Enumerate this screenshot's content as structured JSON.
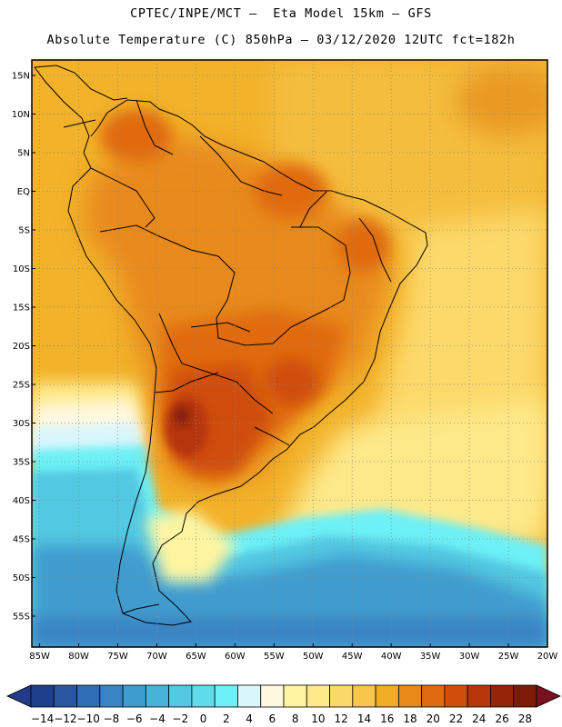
{
  "header": {
    "line1": "CPTEC/INPE/MCT –  Eta Model 15km – GFS",
    "line2": "Absolute Temperature (C) 850hPa – 03/12/2020 12UTC fct=182h"
  },
  "map": {
    "variable": "Absolute Temperature (C) 850hPa",
    "region": "South America",
    "lon_range_deg": [
      -86,
      -20
    ],
    "lat_range_deg": [
      -59,
      17
    ],
    "lat_labels": [
      "15N",
      "10N",
      "5N",
      "EQ",
      "5S",
      "10S",
      "15S",
      "20S",
      "25S",
      "30S",
      "35S",
      "40S",
      "45S",
      "50S",
      "55S"
    ],
    "lon_labels": [
      "85W",
      "80W",
      "75W",
      "70W",
      "65W",
      "60W",
      "55W",
      "50W",
      "45W",
      "40W",
      "35W",
      "30W",
      "25W",
      "20W"
    ]
  },
  "colorbar": {
    "labels": [
      "-14",
      "-12",
      "-10",
      "-8",
      "-6",
      "-4",
      "-2",
      "0",
      "2",
      "4",
      "6",
      "8",
      "10",
      "12",
      "14",
      "16",
      "18",
      "20",
      "22",
      "24",
      "26",
      "28"
    ],
    "colors": [
      "#1e3f8c",
      "#2a56a0",
      "#2f6db4",
      "#3a84c4",
      "#3f9cce",
      "#47b3d8",
      "#52c8e2",
      "#5fdbea",
      "#6df0f6",
      "#d9f6fb",
      "#fff8e0",
      "#fff4a0",
      "#fde98a",
      "#fbd968",
      "#f6c54a",
      "#f0ac22",
      "#e8891a",
      "#e06a10",
      "#cf4e0c",
      "#b5360a",
      "#962408",
      "#7d1a08"
    ],
    "under_color": "#223b88",
    "over_color": "#7a1020"
  }
}
